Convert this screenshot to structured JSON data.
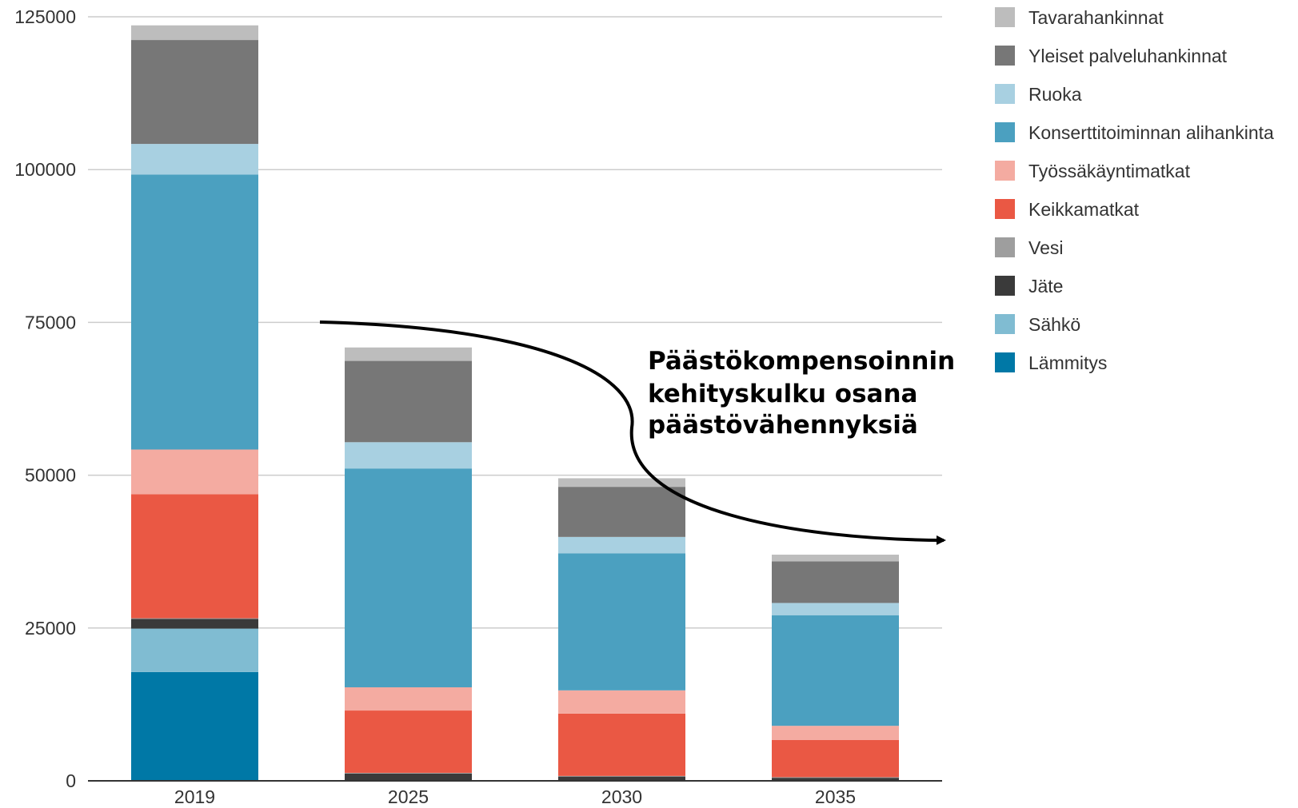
{
  "chart_data": {
    "type": "bar",
    "stacked": true,
    "categories": [
      "2019",
      "2025",
      "2030",
      "2035"
    ],
    "ylim": [
      0,
      125000
    ],
    "yticks": [
      0,
      25000,
      50000,
      75000,
      100000,
      125000
    ],
    "grid": true,
    "legend_position": "right",
    "annotation": {
      "lines": [
        "Päästökompensoinnin",
        "kehityskulku osana",
        "päästövähennyksiä"
      ],
      "arrow": "curved-down-right"
    },
    "series": [
      {
        "name": "Lämmitys",
        "color": "#0078A6",
        "values": [
          17800,
          0,
          0,
          0
        ]
      },
      {
        "name": "Sähkö",
        "color": "#80BCD2",
        "values": [
          7100,
          0,
          0,
          0
        ]
      },
      {
        "name": "Jäte",
        "color": "#3A3A3A",
        "values": [
          1600,
          1200,
          700,
          500
        ]
      },
      {
        "name": "Vesi",
        "color": "#9E9E9E",
        "values": [
          100,
          100,
          100,
          100
        ]
      },
      {
        "name": "Keikkamatkat",
        "color": "#EA5844",
        "values": [
          20300,
          10200,
          10200,
          6100
        ]
      },
      {
        "name": "Työssäkäyntimatkat",
        "color": "#F4ABA1",
        "values": [
          7300,
          3800,
          3800,
          2300
        ]
      },
      {
        "name": "Konserttitoiminnan alihankinta",
        "color": "#4BA0C0",
        "values": [
          45000,
          35800,
          22400,
          18100
        ]
      },
      {
        "name": "Ruoka",
        "color": "#A8D0E1",
        "values": [
          5000,
          4300,
          2700,
          2000
        ]
      },
      {
        "name": "Yleiset palveluhankinnat",
        "color": "#777777",
        "values": [
          17000,
          13300,
          8200,
          6800
        ]
      },
      {
        "name": "Tavarahankinnat",
        "color": "#BDBDBD",
        "values": [
          2400,
          2200,
          1400,
          1100
        ]
      }
    ],
    "legend_order": [
      "Tavarahankinnat",
      "Yleiset palveluhankinnat",
      "Ruoka",
      "Konserttitoiminnan alihankinta",
      "Työssäkäyntimatkat",
      "Keikkamatkat",
      "Vesi",
      "Jäte",
      "Sähkö",
      "Lämmitys"
    ]
  }
}
